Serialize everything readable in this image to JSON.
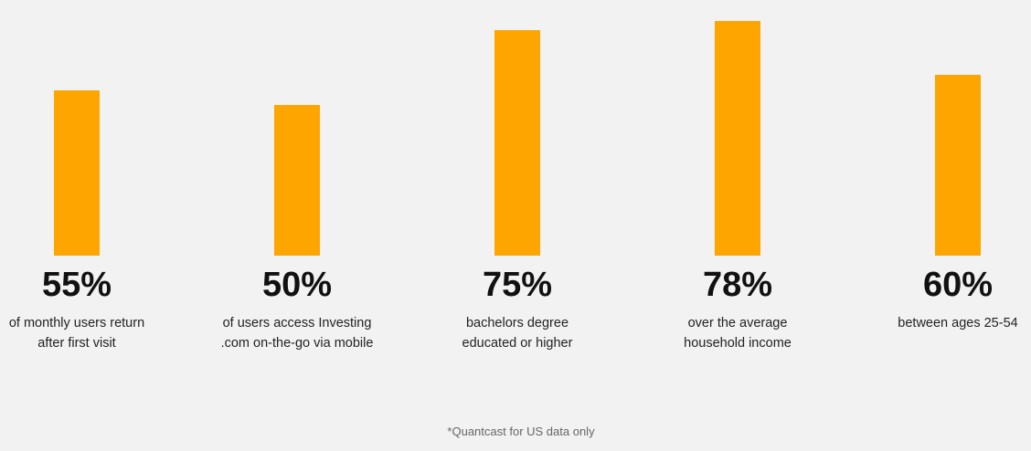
{
  "chart_data": {
    "type": "bar",
    "color": "#ffa500",
    "categories": [
      [
        "of monthly users return",
        "after first visit"
      ],
      [
        "of users access Investing",
        ".com on-the-go via mobile"
      ],
      [
        "bachelors degree",
        "educated or higher"
      ],
      [
        "over the average",
        "household income"
      ],
      [
        "between ages 25-54"
      ]
    ],
    "values": [
      55,
      50,
      75,
      78,
      60
    ],
    "value_labels": [
      "55%",
      "50%",
      "75%",
      "78%",
      "60%"
    ],
    "footnote": "*Quantcast for US data only"
  }
}
